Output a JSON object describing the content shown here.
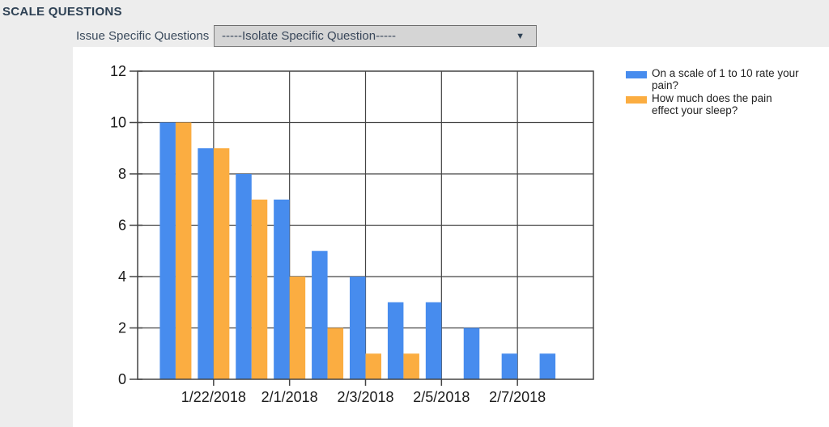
{
  "header": {
    "title": "SCALE QUESTIONS"
  },
  "controls": {
    "label": "Issue Specific Questions",
    "selected_option": "-----Isolate Specific Question-----",
    "dropdown_icon": "chevron-down-icon",
    "dropdown_arrow_glyph": "▼"
  },
  "colors": {
    "page_bg": "#ededed",
    "panel_bg": "#ffffff",
    "title_text": "#2e4154",
    "grid": "#444444",
    "series_pain_blue": "#478cee",
    "series_sleep_orange": "#fbad41"
  },
  "chart_data": {
    "type": "bar",
    "title": "",
    "xlabel": "",
    "ylabel": "",
    "ylim": [
      0,
      12
    ],
    "yticks": [
      0,
      2,
      4,
      6,
      8,
      10,
      12
    ],
    "x_tick_labels": [
      "1/22/2018",
      "2/1/2018",
      "2/3/2018",
      "2/5/2018",
      "2/7/2018"
    ],
    "num_bar_groups": 11,
    "grid": true,
    "legend_position": "right",
    "series": [
      {
        "name": "On a scale of 1 to 10 rate your pain?",
        "color": "#478cee",
        "values": [
          10,
          9,
          8,
          7,
          5,
          4,
          3,
          3,
          2,
          1,
          1
        ]
      },
      {
        "name": "How much does the pain effect your sleep?",
        "color": "#fbad41",
        "values": [
          10,
          9,
          7,
          4,
          2,
          1,
          1,
          0,
          0,
          0,
          0
        ]
      }
    ]
  }
}
